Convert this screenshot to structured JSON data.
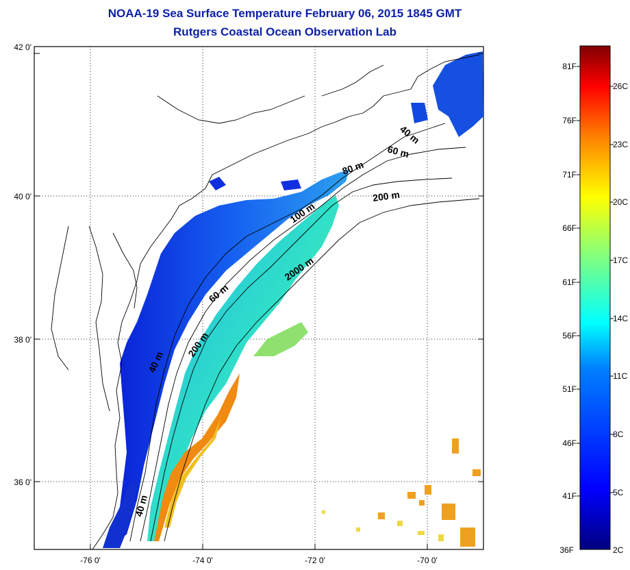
{
  "title": "NOAA-19 Sea Surface Temperature February 06, 2015 1845 GMT",
  "subtitle": "Rutgers Coastal Ocean Observation Lab",
  "map": {
    "lat_ticks": [
      "42 0'",
      "40 0'",
      "38 0'",
      "36 0'"
    ],
    "lon_ticks": [
      "-76 0'",
      "-74 0'",
      "-72 0'",
      "-70 0'"
    ],
    "contour_labels": [
      "40 m",
      "60 m",
      "80 m",
      "200 m",
      "100 m",
      "2000 m",
      "60 m",
      "200 m",
      "40 m",
      "40 m"
    ]
  },
  "colorbar": {
    "fahrenheit_labels": [
      "81F",
      "76F",
      "71F",
      "66F",
      "61F",
      "56F",
      "51F",
      "46F",
      "41F",
      "36F"
    ],
    "celsius_labels": [
      "26C",
      "23C",
      "20C",
      "17C",
      "14C",
      "11C",
      "8C",
      "5C",
      "2C"
    ],
    "colors": [
      "#00007f",
      "#0000ff",
      "#0080ff",
      "#00ffff",
      "#80ff80",
      "#ffff00",
      "#ff8000",
      "#ff0000",
      "#7f0000"
    ]
  }
}
